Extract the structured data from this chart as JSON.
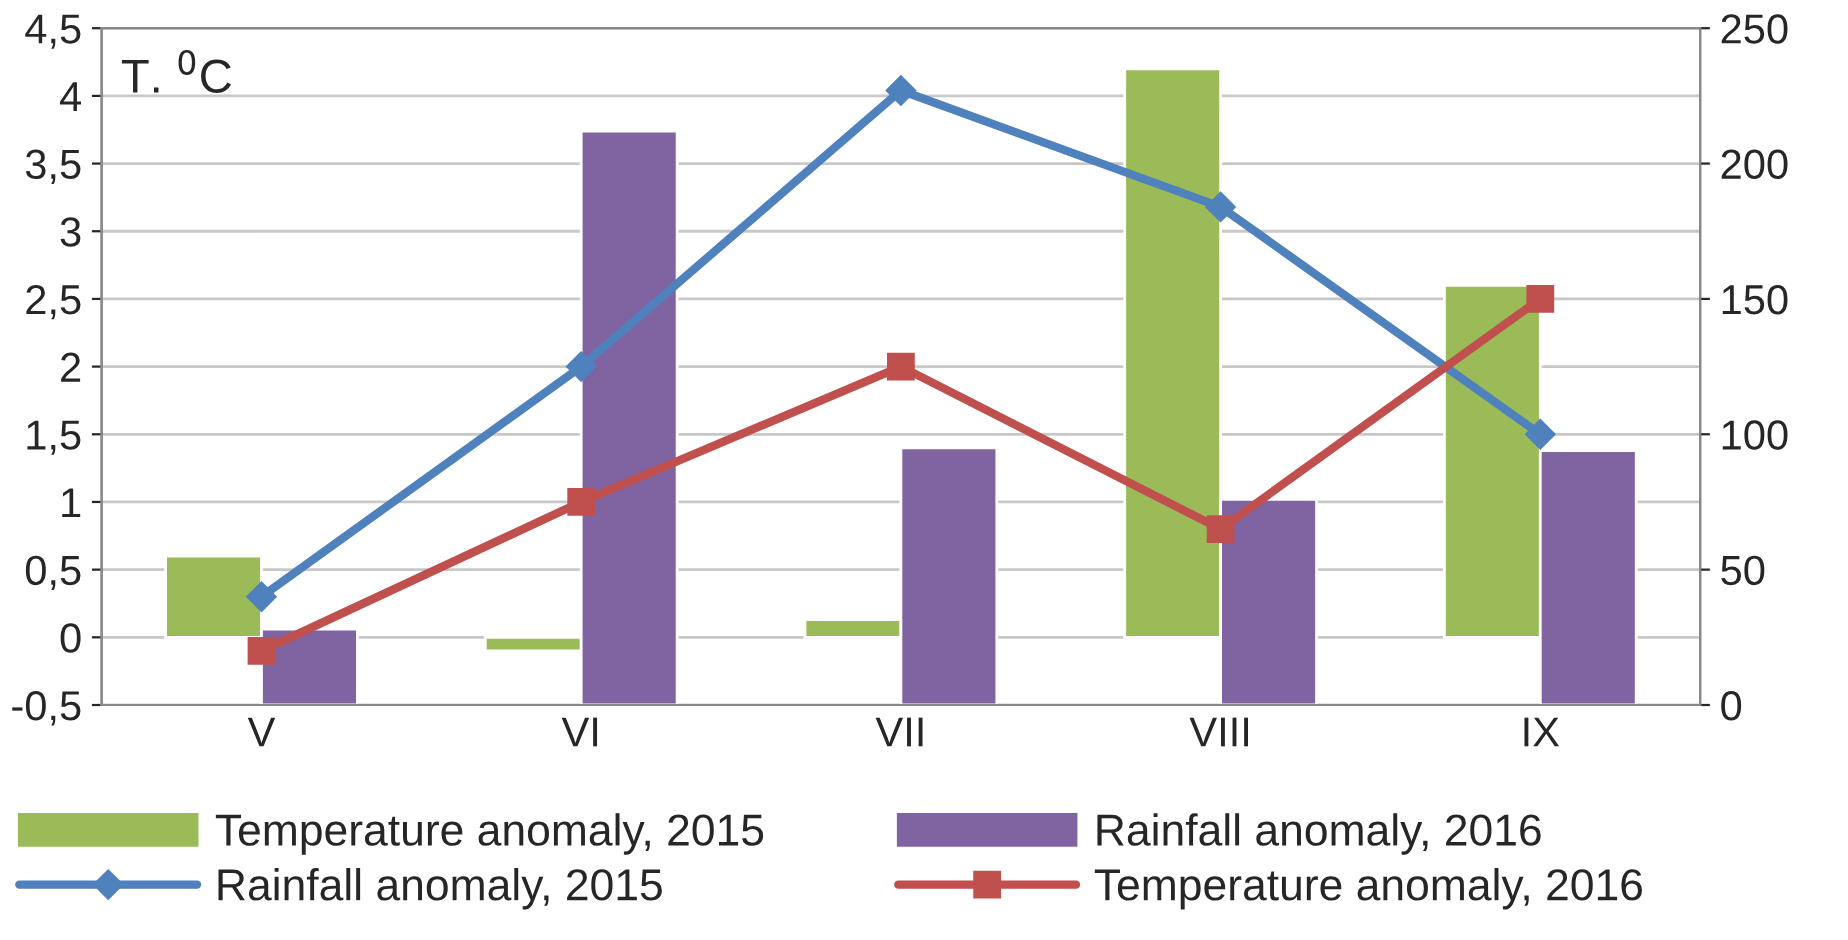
{
  "chart_data": {
    "type": "bar",
    "ylabel": "T. $^{0}$C",
    "categories": [
      "V",
      "VI",
      "VII",
      "VIII",
      "IX"
    ],
    "series": [
      {
        "name": "Temperature anomaly, 2015",
        "color": "#9bbb59",
        "values": [
          0.6,
          -0.1,
          0.13,
          4.2,
          2.6
        ]
      },
      {
        "name": "Rainfall anomaly, 2016",
        "axis": "y2",
        "color": "#8064a2",
        "values": [
          28,
          212,
          95,
          76,
          94
        ]
      },
      {
        "name": "Rainfall anomaly, 2015",
        "type": "line",
        "axis": "y2",
        "color": "#4f81bd",
        "marker": "diamond",
        "values": [
          40,
          125,
          227,
          184,
          100
        ]
      },
      {
        "name": "Temperature anomaly, 2016",
        "type": "line",
        "color": "#c0504d",
        "marker": "square",
        "values": [
          -0.1,
          1,
          2,
          0.8,
          2.5
        ]
      }
    ],
    "ylim": [
      -0.5,
      4.5
    ],
    "yticks": [
      {
        "value": -0.5,
        "label": "-0,5"
      },
      0,
      {
        "value": 0.5,
        "label": "0,5"
      },
      1,
      {
        "value": 1.5,
        "label": "1,5"
      },
      2,
      {
        "value": 2.5,
        "label": "2,5"
      },
      3,
      {
        "value": 3.5,
        "label": "3,5"
      },
      4,
      {
        "value": 4.5,
        "label": "4,5"
      }
    ],
    "y2lim": [
      0,
      250
    ],
    "y2ticks": [
      0,
      50,
      100,
      150,
      200,
      250
    ],
    "grid": "y",
    "legend": "bottom"
  }
}
